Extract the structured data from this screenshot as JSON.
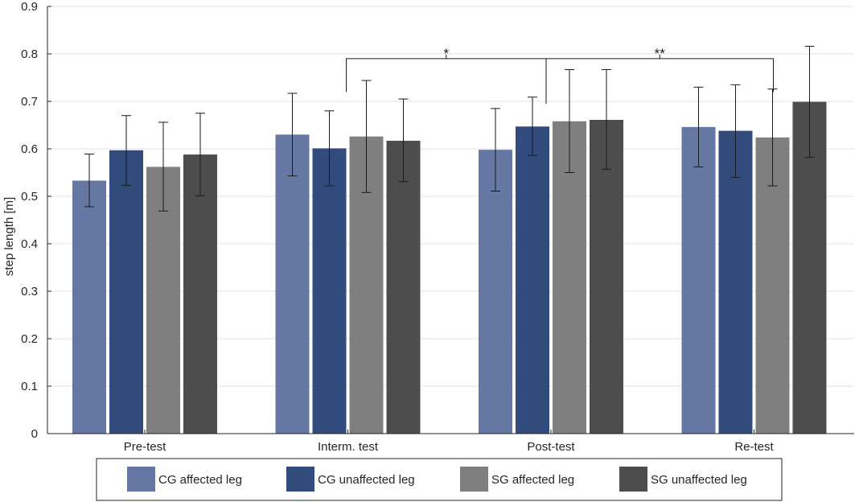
{
  "chart_data": {
    "type": "bar",
    "title": "",
    "xlabel": "",
    "ylabel": "step length [m]",
    "ylim": [
      0,
      0.9
    ],
    "yticks": [
      "0",
      "0.1",
      "0.2",
      "0.3",
      "0.4",
      "0.5",
      "0.6",
      "0.7",
      "0.8",
      "0.9"
    ],
    "grid": true,
    "legend_position": "bottom",
    "categories": [
      "Pre-test",
      "Interm. test",
      "Post-test",
      "Re-test"
    ],
    "series": [
      {
        "name": "CG affected leg",
        "color": "#6577a3",
        "values": [
          0.533,
          0.63,
          0.598,
          0.646
        ],
        "err_low": [
          0.478,
          0.543,
          0.511,
          0.562
        ],
        "err_high": [
          0.589,
          0.717,
          0.685,
          0.73
        ]
      },
      {
        "name": "CG unaffected leg",
        "color": "#324b7d",
        "values": [
          0.597,
          0.601,
          0.647,
          0.638
        ],
        "err_low": [
          0.523,
          0.522,
          0.586,
          0.54
        ],
        "err_high": [
          0.67,
          0.68,
          0.709,
          0.735
        ]
      },
      {
        "name": "SG affected leg",
        "color": "#7f7f7f",
        "values": [
          0.562,
          0.626,
          0.658,
          0.624
        ],
        "err_low": [
          0.469,
          0.508,
          0.55,
          0.522
        ],
        "err_high": [
          0.656,
          0.744,
          0.767,
          0.726
        ]
      },
      {
        "name": "SG unaffected leg",
        "color": "#4d4d4d",
        "values": [
          0.588,
          0.617,
          0.661,
          0.699
        ],
        "err_low": [
          0.501,
          0.531,
          0.557,
          0.582
        ],
        "err_high": [
          0.675,
          0.705,
          0.767,
          0.816
        ]
      }
    ],
    "annotations": [
      {
        "label": "*",
        "from_category": 1,
        "to_category": 2,
        "y": 0.79
      },
      {
        "label": "**",
        "from_category": 2,
        "to_category": 3,
        "y": 0.79
      }
    ]
  }
}
